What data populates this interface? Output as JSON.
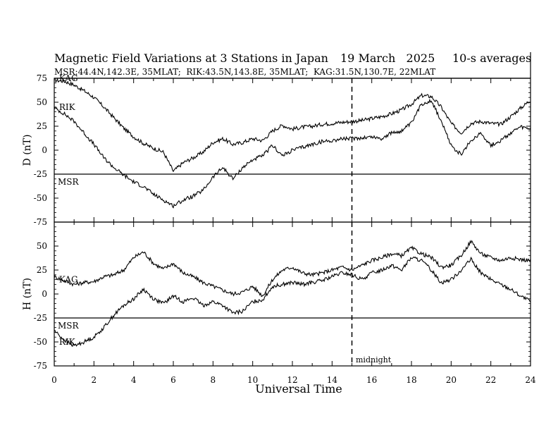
{
  "chart_data": {
    "type": "line",
    "title": "Magnetic Field Variations at 3 Stations in Japan",
    "date": "19 March   2025",
    "averaging": "10-s averages",
    "subtitle": "MSR:44.4N,142.3E, 35MLAT;  RIK:43.5N,143.8E, 35MLAT;  KAG:31.5N,130.7E, 22MLAT",
    "xlabel": "Universal Time",
    "x_ticks": [
      "0",
      "2",
      "4",
      "6",
      "8",
      "10",
      "12",
      "14",
      "16",
      "18",
      "20",
      "22",
      "24"
    ],
    "xlim": [
      0,
      24
    ],
    "midnight_label": "midnight",
    "midnight_ut": 15,
    "grid": false,
    "panels": [
      {
        "id": "D",
        "ylabel": "D (nT)",
        "ylim": [
          -75,
          75
        ],
        "y_ticks": [
          "75",
          "50",
          "25",
          "0",
          "-25",
          "-50",
          "-75"
        ],
        "baselines": [
          {
            "station": "KAG",
            "value": 75
          },
          {
            "station": "MSR",
            "value": -25
          }
        ],
        "series": [
          {
            "name": "KAG",
            "label_value": 75,
            "label_x": 0.1,
            "x": [
              0,
              0.5,
              1,
              1.5,
              2,
              2.5,
              3,
              3.5,
              4,
              4.5,
              5,
              5.5,
              6,
              6.5,
              7,
              7.5,
              8,
              8.5,
              9,
              9.5,
              10,
              10.5,
              11,
              11.5,
              12,
              12.5,
              13,
              13.5,
              14,
              14.5,
              15,
              15.5,
              16,
              16.5,
              17,
              17.5,
              18,
              18.5,
              19,
              19.5,
              20,
              20.5,
              21,
              21.5,
              22,
              22.5,
              23,
              23.5,
              24
            ],
            "y": [
              73,
              72,
              68,
              62,
              55,
              45,
              34,
              23,
              14,
              7,
              2,
              -2,
              -22,
              -13,
              -8,
              -2,
              8,
              12,
              6,
              8,
              12,
              10,
              20,
              26,
              22,
              24,
              25,
              27,
              28,
              29,
              30,
              31,
              33,
              35,
              38,
              42,
              48,
              57,
              56,
              45,
              28,
              18,
              28,
              30,
              28,
              27,
              35,
              44,
              52
            ]
          },
          {
            "name": "RIK",
            "label_value": 45,
            "label_x": 0.1,
            "x": [
              0,
              0.5,
              1,
              1.5,
              2,
              2.5,
              3,
              3.5,
              4,
              4.5,
              5,
              5.5,
              6,
              6.5,
              7,
              7.5,
              8,
              8.5,
              9,
              9.5,
              10,
              10.5,
              11,
              11.5,
              12,
              12.5,
              13,
              13.5,
              14,
              14.5,
              15,
              15.5,
              16,
              16.5,
              17,
              17.5,
              18,
              18.5,
              19,
              19.5,
              20,
              20.5,
              21,
              21.5,
              22,
              22.5,
              23,
              23.5,
              24
            ],
            "y": [
              44,
              38,
              30,
              18,
              6,
              -8,
              -18,
              -26,
              -33,
              -38,
              -46,
              -52,
              -58,
              -52,
              -48,
              -42,
              -28,
              -18,
              -30,
              -18,
              -10,
              -6,
              5,
              -6,
              0,
              3,
              6,
              9,
              10,
              12,
              12,
              13,
              14,
              12,
              18,
              20,
              28,
              48,
              52,
              30,
              5,
              -5,
              10,
              18,
              5,
              10,
              18,
              24,
              22
            ]
          }
        ]
      },
      {
        "id": "H",
        "ylabel": "H (nT)",
        "ylim": [
          -75,
          75
        ],
        "y_ticks": [
          "50",
          "25",
          "0",
          "-25",
          "-50",
          "-75"
        ],
        "baselines": [
          {
            "station": "MSR",
            "value": -25
          }
        ],
        "series": [
          {
            "name": "KAG",
            "label_value": 15,
            "label_x": 0.1,
            "x": [
              0,
              0.5,
              1,
              1.5,
              2,
              2.5,
              3,
              3.5,
              4,
              4.5,
              5,
              5.5,
              6,
              6.5,
              7,
              7.5,
              8,
              8.5,
              9,
              9.5,
              10,
              10.5,
              11,
              11.5,
              12,
              12.5,
              13,
              13.5,
              14,
              14.5,
              15,
              15.5,
              16,
              16.5,
              17,
              17.5,
              18,
              18.5,
              19,
              19.5,
              20,
              20.5,
              21,
              21.5,
              22,
              22.5,
              23,
              23.5,
              24
            ],
            "y": [
              18,
              14,
              10,
              12,
              13,
              18,
              20,
              25,
              38,
              44,
              32,
              26,
              32,
              22,
              18,
              12,
              8,
              4,
              0,
              2,
              8,
              -2,
              15,
              25,
              28,
              22,
              20,
              22,
              25,
              28,
              25,
              30,
              35,
              38,
              42,
              40,
              48,
              42,
              38,
              28,
              30,
              40,
              55,
              42,
              38,
              35,
              38,
              36,
              35
            ]
          },
          {
            "name": "RIK",
            "label_value": -50,
            "label_x": 0.1,
            "x": [
              0,
              0.5,
              1,
              1.5,
              2,
              2.5,
              3,
              3.5,
              4,
              4.5,
              5,
              5.5,
              6,
              6.5,
              7,
              7.5,
              8,
              8.5,
              9,
              9.5,
              10,
              10.5,
              11,
              11.5,
              12,
              12.5,
              13,
              13.5,
              14,
              14.5,
              15,
              15.5,
              16,
              16.5,
              17,
              17.5,
              18,
              18.5,
              19,
              19.5,
              20,
              20.5,
              21,
              21.5,
              22,
              22.5,
              23,
              23.5,
              24
            ],
            "y": [
              -38,
              -48,
              -54,
              -50,
              -45,
              -35,
              -22,
              -12,
              -5,
              5,
              -5,
              -10,
              -2,
              -8,
              -4,
              -12,
              -8,
              -12,
              -20,
              -18,
              -8,
              -6,
              8,
              10,
              12,
              10,
              12,
              14,
              18,
              22,
              20,
              15,
              22,
              25,
              30,
              25,
              38,
              35,
              25,
              12,
              15,
              25,
              36,
              22,
              15,
              10,
              5,
              -2,
              -8
            ]
          }
        ]
      }
    ]
  }
}
